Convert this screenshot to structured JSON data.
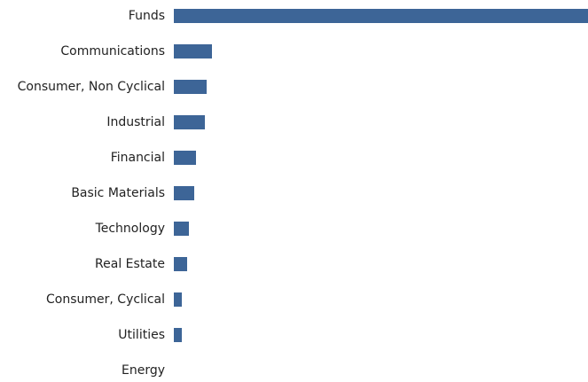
{
  "chart_data": {
    "type": "barh",
    "categories": [
      "Funds",
      "Communications",
      "Consumer, Non Cyclical",
      "Industrial",
      "Financial",
      "Basic Materials",
      "Technology",
      "Real Estate",
      "Consumer, Cyclical",
      "Utilities",
      "Energy"
    ],
    "values": [
      46.7,
      4.3,
      3.7,
      3.5,
      2.5,
      2.3,
      1.7,
      1.5,
      0.9,
      0.9,
      0
    ],
    "color": "#3d6597"
  }
}
